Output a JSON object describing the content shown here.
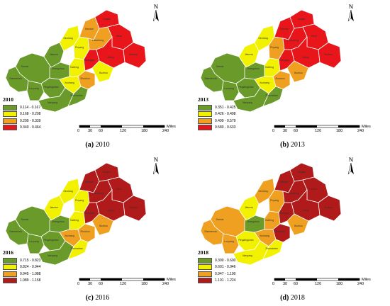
{
  "panels": [
    {
      "id": "a",
      "year": "2010",
      "caption_label": "(a)",
      "caption_year": "2010",
      "legend": [
        {
          "range": "0.114 - 0.167",
          "color": "#6a9a2a"
        },
        {
          "range": "0.168 - 0.208",
          "color": "#f2f200"
        },
        {
          "range": "0.209 - 0.339",
          "color": "#f0a020"
        },
        {
          "range": "0.340 - 0.464",
          "color": "#e8161a"
        }
      ]
    },
    {
      "id": "b",
      "year": "2013",
      "caption_label": "(b)",
      "caption_year": "2013",
      "legend": [
        {
          "range": "0.351 - 0.425",
          "color": "#6a9a2a"
        },
        {
          "range": "0.426 - 0.498",
          "color": "#f2f200"
        },
        {
          "range": "0.499 - 0.579",
          "color": "#f0a020"
        },
        {
          "range": "0.580 - 0.633",
          "color": "#e8161a"
        }
      ]
    },
    {
      "id": "c",
      "year": "2016",
      "caption_label": "(c)",
      "caption_year": "2016",
      "legend": [
        {
          "range": "0.715 - 0.823",
          "color": "#6a9a2a"
        },
        {
          "range": "0.824 - 0.944",
          "color": "#f2f200"
        },
        {
          "range": "0.945 - 1.088",
          "color": "#f0a020"
        },
        {
          "range": "1.089 - 1.158",
          "color": "#b01a1a"
        }
      ]
    },
    {
      "id": "d",
      "year": "2018",
      "caption_label": "(d)",
      "caption_year": "2018",
      "legend": [
        {
          "range": "0.300 - 0.600",
          "color": "#6a9a2a"
        },
        {
          "range": "0.601 - 0.946",
          "color": "#f2f200"
        },
        {
          "range": "0.947 - 1.100",
          "color": "#f0a020"
        },
        {
          "range": "1.101 - 1.224",
          "color": "#b01a1a"
        }
      ]
    }
  ],
  "north_label": "N",
  "scale": {
    "ticks": [
      "0",
      "30",
      "60",
      "120",
      "180",
      "240"
    ],
    "unit": "Miles"
  },
  "region_colors": {
    "a": [
      "g",
      "g",
      "g",
      "g",
      "g",
      "g",
      "y",
      "y",
      "y",
      "y",
      "o",
      "o",
      "o",
      "r",
      "r",
      "r",
      "r",
      "g",
      "g",
      "y",
      "r"
    ],
    "b": [
      "g",
      "g",
      "g",
      "g",
      "g",
      "y",
      "y",
      "y",
      "o",
      "y",
      "o",
      "r",
      "r",
      "r",
      "r",
      "r",
      "r",
      "g",
      "g",
      "o",
      "r"
    ],
    "c": [
      "g",
      "g",
      "g",
      "g",
      "g",
      "y",
      "y",
      "y",
      "y",
      "o",
      "o",
      "r",
      "r",
      "r",
      "r",
      "r",
      "r",
      "g",
      "y",
      "o",
      "r"
    ],
    "d": [
      "o",
      "o",
      "o",
      "y",
      "g",
      "y",
      "o",
      "o",
      "o",
      "o",
      "r",
      "r",
      "r",
      "r",
      "r",
      "r",
      "r",
      "y",
      "y",
      "o",
      "r"
    ]
  }
}
